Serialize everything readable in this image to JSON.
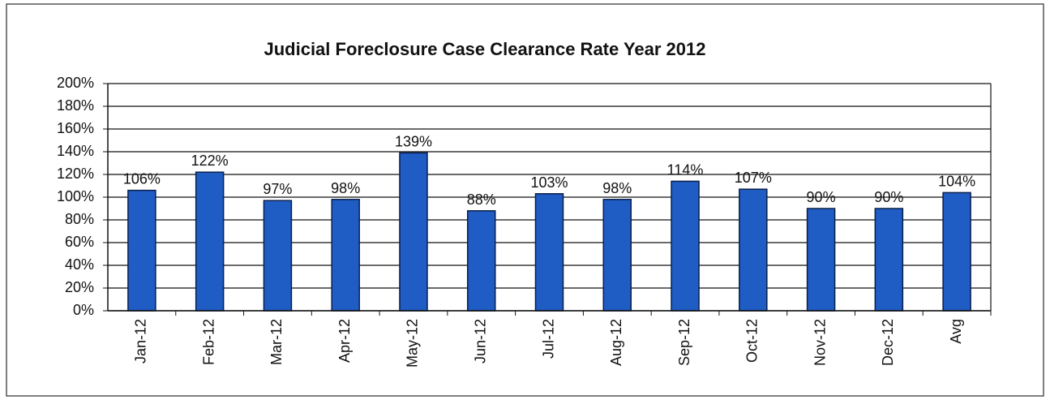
{
  "chart_data": {
    "type": "bar",
    "title": "Judicial Foreclosure  Case  Clearance Rate Year 2012",
    "categories": [
      "Jan-12",
      "Feb-12",
      "Mar-12",
      "Apr-12",
      "May-12",
      "Jun-12",
      "Jul-12",
      "Aug-12",
      "Sep-12",
      "Oct-12",
      "Nov-12",
      "Dec-12",
      "Avg"
    ],
    "values": [
      106,
      122,
      97,
      98,
      139,
      88,
      103,
      98,
      114,
      107,
      90,
      90,
      104
    ],
    "value_labels": [
      "106%",
      "122%",
      "97%",
      "98%",
      "139%",
      "88%",
      "103%",
      "98%",
      "114%",
      "107%",
      "90%",
      "90%",
      "104%"
    ],
    "color": "#1f5cc4",
    "ylim": [
      0,
      200
    ],
    "yticks": [
      {
        "value": 0,
        "label": "0%"
      },
      {
        "value": 20,
        "label": "20%"
      },
      {
        "value": 40,
        "label": "40%"
      },
      {
        "value": 60,
        "label": "60%"
      },
      {
        "value": 80,
        "label": "80%"
      },
      {
        "value": 100,
        "label": "100%"
      },
      {
        "value": 120,
        "label": "120%"
      },
      {
        "value": 140,
        "label": "140%"
      },
      {
        "value": 160,
        "label": "160%"
      },
      {
        "value": 180,
        "label": "180%"
      },
      {
        "value": 200,
        "label": "200%"
      }
    ],
    "grid": true
  }
}
